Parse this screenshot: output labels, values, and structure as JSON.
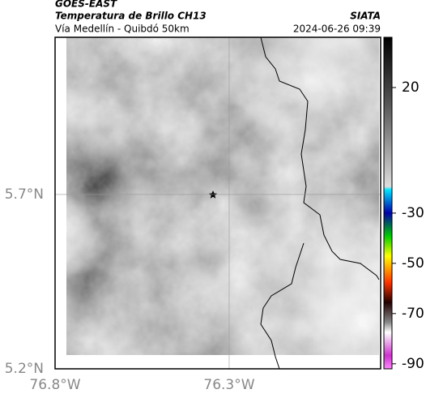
{
  "header": {
    "source": "GOES-EAST",
    "title": "Temperatura de Brillo CH13",
    "credit": "SIATA",
    "route": "Vía Medellín - Quibdó 50km",
    "datetime": "2024-06-26 09:39"
  },
  "map": {
    "xlim": [
      -76.8,
      -75.865
    ],
    "ylim": [
      5.2,
      6.151
    ],
    "xticks": [
      {
        "value": -76.8,
        "label": "76.8°W"
      },
      {
        "value": -76.3,
        "label": "76.3°W"
      }
    ],
    "yticks": [
      {
        "value": 5.7,
        "label": "5.7°N"
      },
      {
        "value": 5.2,
        "label": "5.2°N"
      }
    ]
  },
  "colorbar": {
    "lim": [
      -92,
      40
    ],
    "ticks": [
      20,
      -30,
      -50,
      -70,
      -90
    ]
  }
}
